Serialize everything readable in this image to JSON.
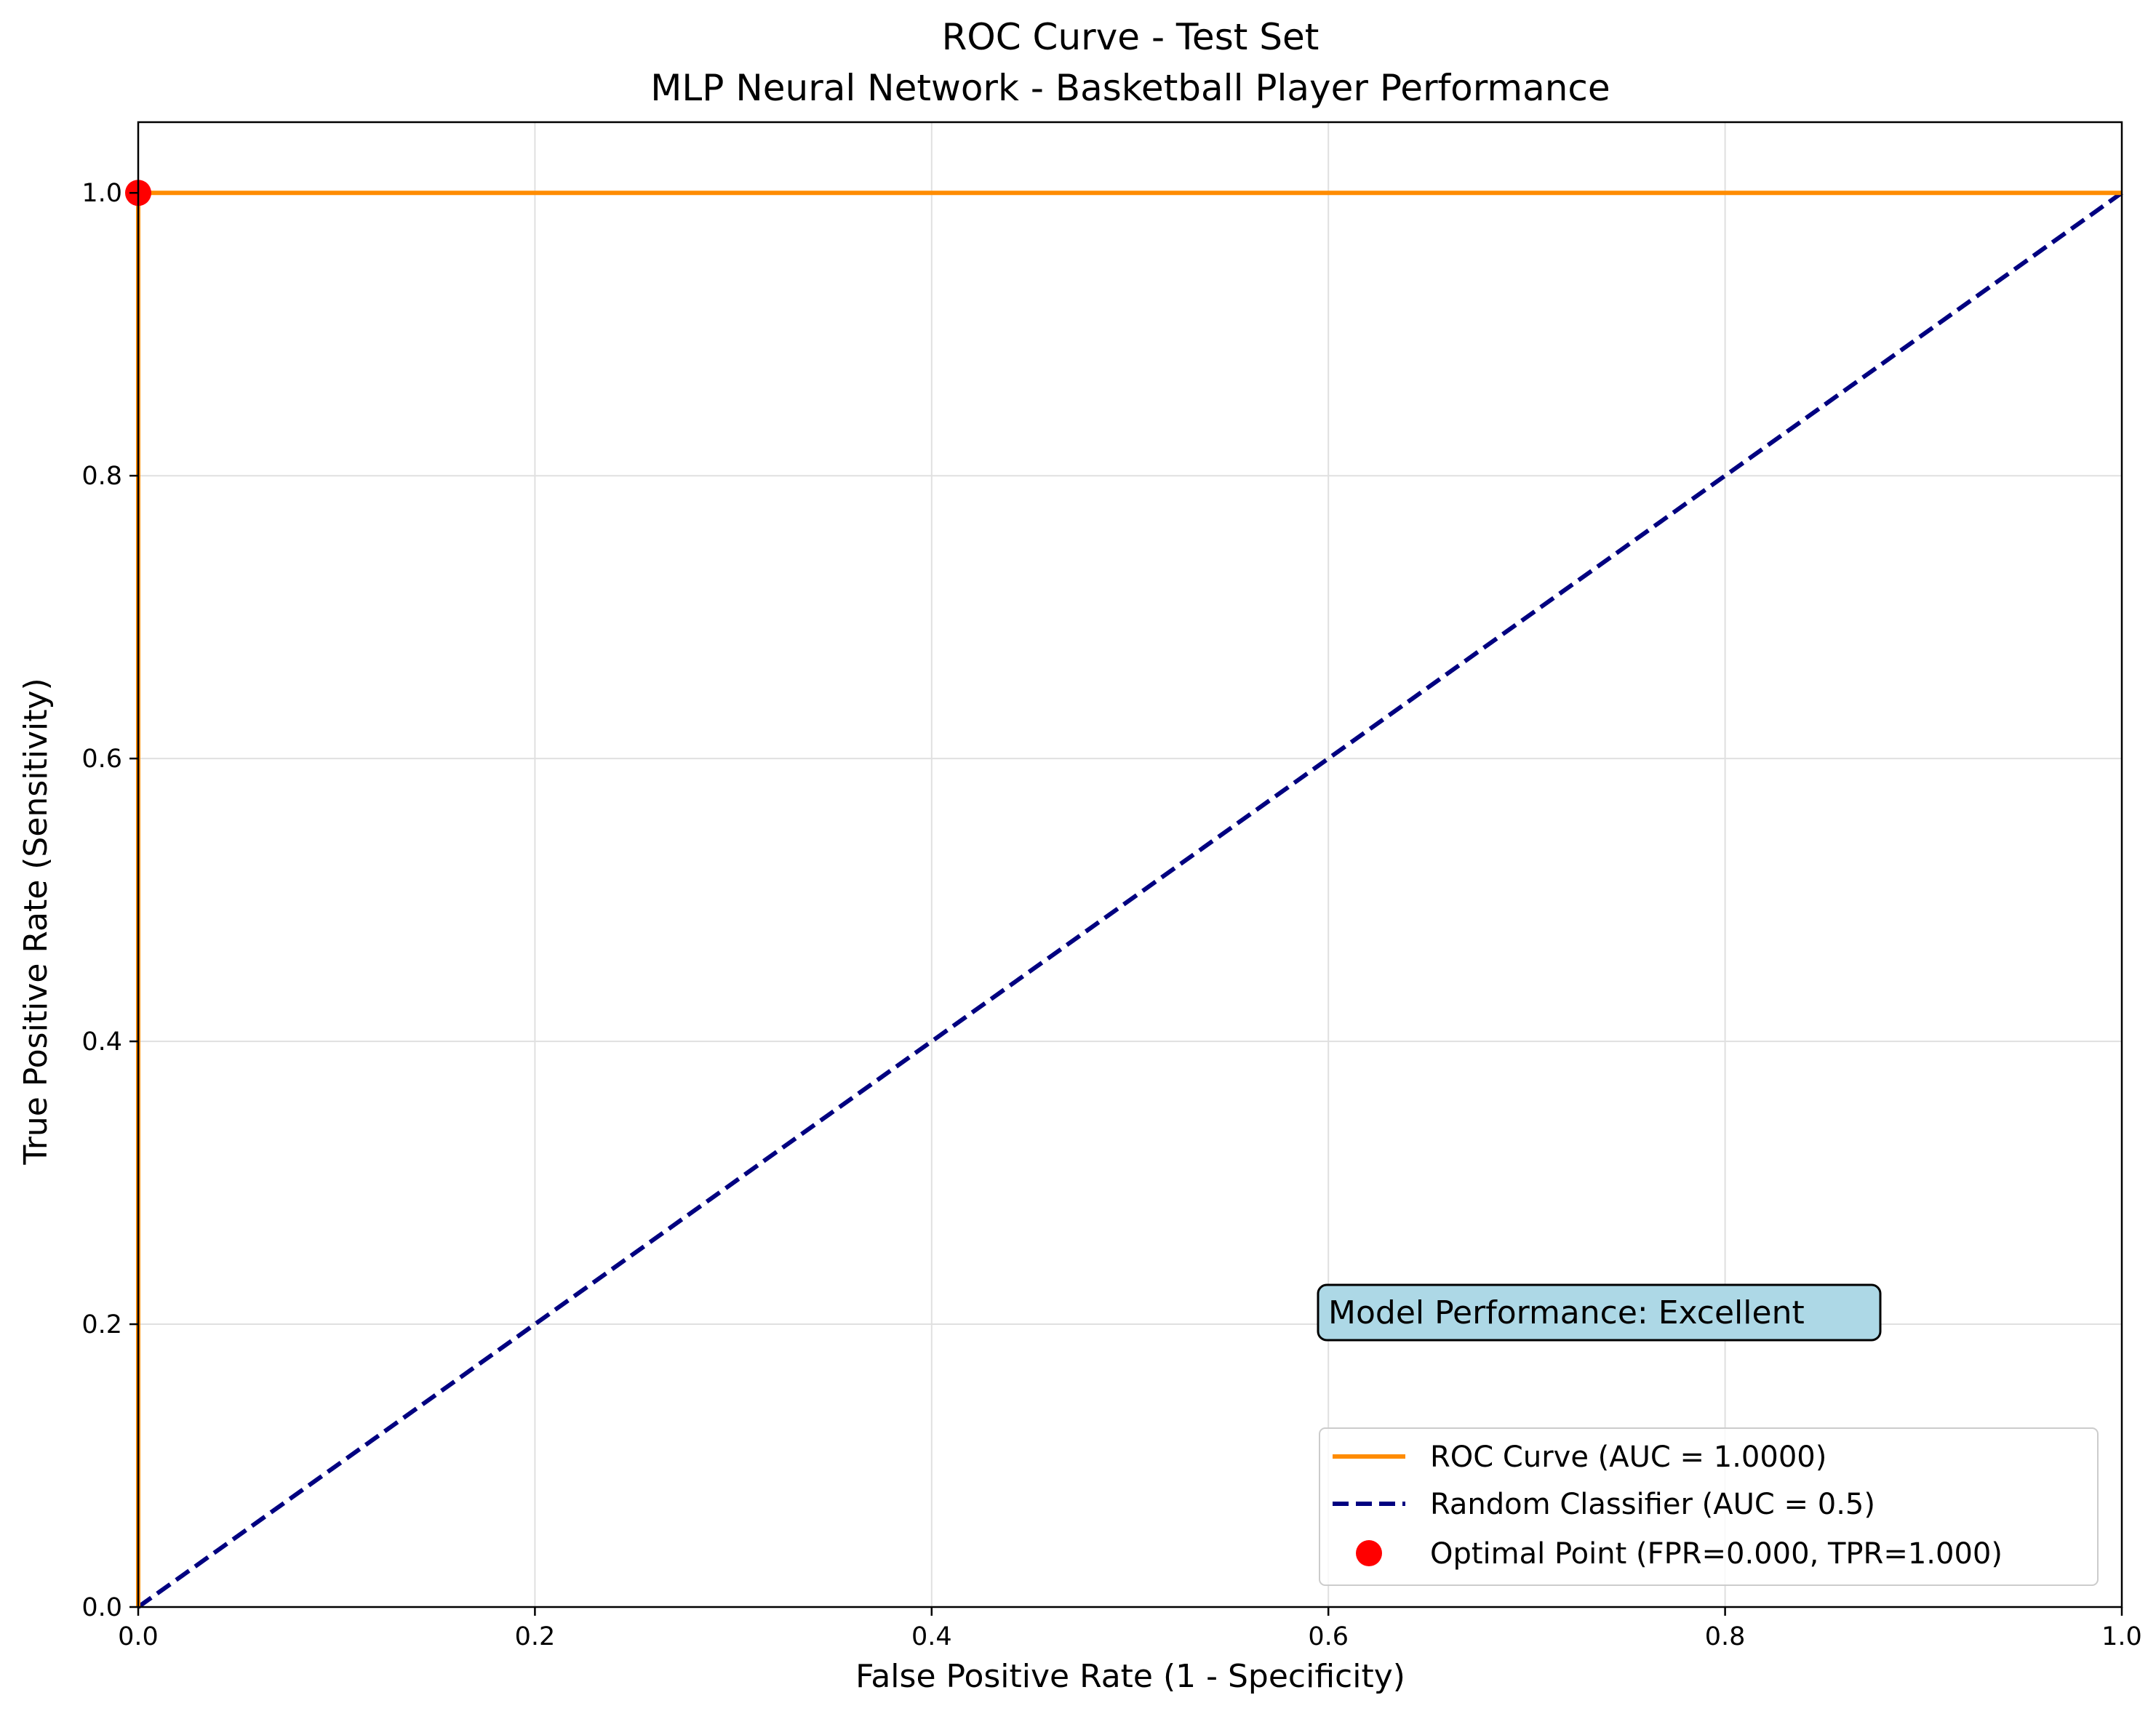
{
  "chart_data": {
    "type": "line",
    "title": "ROC Curve - Test Set",
    "subtitle": "MLP Neural Network - Basketball Player Performance",
    "xlabel": "False Positive Rate (1 - Specificity)",
    "ylabel": "True Positive Rate (Sensitivity)",
    "xlim": [
      0.0,
      1.0
    ],
    "ylim": [
      0.0,
      1.05
    ],
    "xticks": [
      0.0,
      0.2,
      0.4,
      0.6,
      0.8,
      1.0
    ],
    "xtick_labels": [
      "0.0",
      "0.2",
      "0.4",
      "0.6",
      "0.8",
      "1.0"
    ],
    "yticks": [
      0.0,
      0.2,
      0.4,
      0.6,
      0.8,
      1.0
    ],
    "ytick_labels": [
      "0.0",
      "0.2",
      "0.4",
      "0.6",
      "0.8",
      "1.0"
    ],
    "grid": true,
    "legend_position": "bottom-right",
    "series": [
      {
        "name": "ROC Curve (AUC = 1.0000)",
        "kind": "line",
        "style": "solid",
        "color": "#ff8c00",
        "x": [
          0.0,
          0.0,
          1.0
        ],
        "y": [
          0.0,
          1.0,
          1.0
        ]
      },
      {
        "name": "Random Classifier (AUC = 0.5)",
        "kind": "line",
        "style": "dashed",
        "color": "#000080",
        "x": [
          0.0,
          1.0
        ],
        "y": [
          0.0,
          1.0
        ]
      },
      {
        "name": "Optimal Point (FPR=0.000, TPR=1.000)",
        "kind": "point",
        "color": "#ff0000",
        "x": [
          0.0
        ],
        "y": [
          1.0
        ]
      }
    ],
    "annotation": {
      "text": "Model Performance: Excellent",
      "background": "#add8e6"
    }
  }
}
